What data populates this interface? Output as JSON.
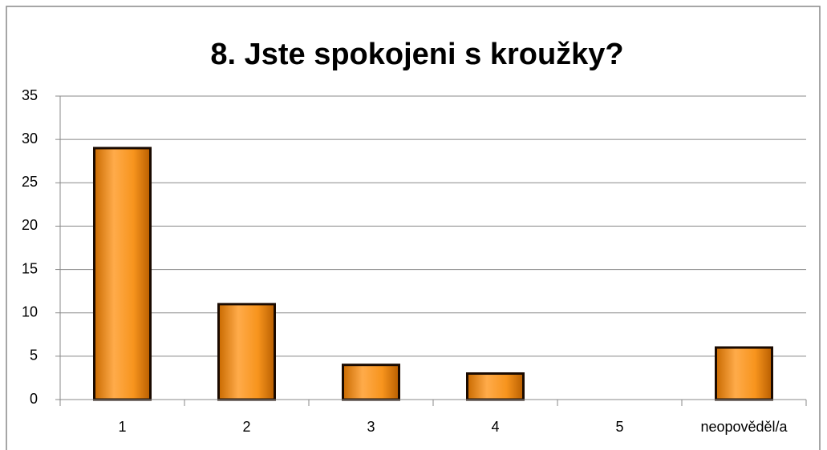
{
  "chart_data": {
    "type": "bar",
    "title": "8. Jste spokojeni s kroužky?",
    "categories": [
      "1",
      "2",
      "3",
      "4",
      "5",
      "neopověděl/a"
    ],
    "values": [
      29,
      11,
      4,
      3,
      0,
      6
    ],
    "color": "#f7941d",
    "ylim": [
      0,
      35
    ],
    "yticks": [
      0,
      5,
      10,
      15,
      20,
      25,
      30,
      35
    ],
    "grid": true
  }
}
